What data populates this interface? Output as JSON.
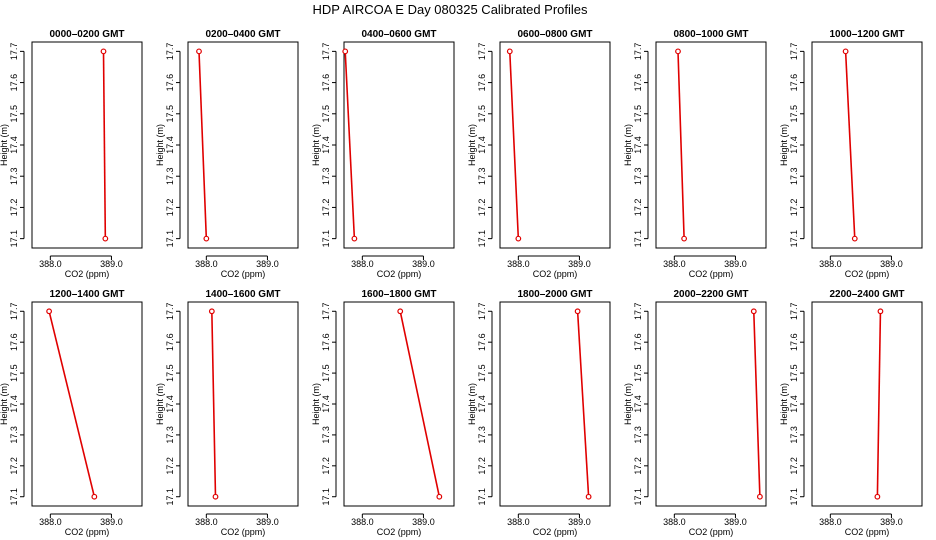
{
  "title": "HDP  AIRCOA E  Day 080325  Calibrated Profiles",
  "colors": {
    "line": "#e00000",
    "axis": "#000000",
    "background": "#ffffff"
  },
  "chart_data": [
    {
      "type": "line",
      "title": "0000–0200 GMT",
      "xlabel": "CO2 (ppm)",
      "ylabel": "Height (m)",
      "xlim": [
        387.7,
        389.5
      ],
      "ylim": [
        17.07,
        17.73
      ],
      "xticks": [
        "388.0",
        "389.0"
      ],
      "yticks": [
        "17.1",
        "17.2",
        "17.3",
        "17.4",
        "17.5",
        "17.6",
        "17.7"
      ],
      "points": [
        {
          "x": 388.9,
          "y": 17.1
        },
        {
          "x": 388.87,
          "y": 17.7
        }
      ]
    },
    {
      "type": "line",
      "title": "0200–0400 GMT",
      "xlabel": "CO2 (ppm)",
      "ylabel": "Height (m)",
      "xlim": [
        387.7,
        389.5
      ],
      "ylim": [
        17.07,
        17.73
      ],
      "xticks": [
        "388.0",
        "389.0"
      ],
      "yticks": [
        "17.1",
        "17.2",
        "17.3",
        "17.4",
        "17.5",
        "17.6",
        "17.7"
      ],
      "points": [
        {
          "x": 388.0,
          "y": 17.1
        },
        {
          "x": 387.88,
          "y": 17.7
        }
      ]
    },
    {
      "type": "line",
      "title": "0400–0600 GMT",
      "xlabel": "CO2 (ppm)",
      "ylabel": "Height (m)",
      "xlim": [
        387.7,
        389.5
      ],
      "ylim": [
        17.07,
        17.73
      ],
      "xticks": [
        "388.0",
        "389.0"
      ],
      "yticks": [
        "17.1",
        "17.2",
        "17.3",
        "17.4",
        "17.5",
        "17.6",
        "17.7"
      ],
      "points": [
        {
          "x": 387.87,
          "y": 17.1
        },
        {
          "x": 387.72,
          "y": 17.7
        }
      ]
    },
    {
      "type": "line",
      "title": "0600–0800 GMT",
      "xlabel": "CO2 (ppm)",
      "ylabel": "Height (m)",
      "xlim": [
        387.7,
        389.5
      ],
      "ylim": [
        17.07,
        17.73
      ],
      "xticks": [
        "388.0",
        "389.0"
      ],
      "yticks": [
        "17.1",
        "17.2",
        "17.3",
        "17.4",
        "17.5",
        "17.6",
        "17.7"
      ],
      "points": [
        {
          "x": 388.0,
          "y": 17.1
        },
        {
          "x": 387.86,
          "y": 17.7
        }
      ]
    },
    {
      "type": "line",
      "title": "0800–1000 GMT",
      "xlabel": "CO2 (ppm)",
      "ylabel": "Height (m)",
      "xlim": [
        387.7,
        389.5
      ],
      "ylim": [
        17.07,
        17.73
      ],
      "xticks": [
        "388.0",
        "389.0"
      ],
      "yticks": [
        "17.1",
        "17.2",
        "17.3",
        "17.4",
        "17.5",
        "17.6",
        "17.7"
      ],
      "points": [
        {
          "x": 388.16,
          "y": 17.1
        },
        {
          "x": 388.06,
          "y": 17.7
        }
      ]
    },
    {
      "type": "line",
      "title": "1000–1200 GMT",
      "xlabel": "CO2 (ppm)",
      "ylabel": "Height (m)",
      "xlim": [
        387.7,
        389.5
      ],
      "ylim": [
        17.07,
        17.73
      ],
      "xticks": [
        "388.0",
        "389.0"
      ],
      "yticks": [
        "17.1",
        "17.2",
        "17.3",
        "17.4",
        "17.5",
        "17.6",
        "17.7"
      ],
      "points": [
        {
          "x": 388.4,
          "y": 17.1
        },
        {
          "x": 388.25,
          "y": 17.7
        }
      ]
    },
    {
      "type": "line",
      "title": "1200–1400 GMT",
      "xlabel": "CO2 (ppm)",
      "ylabel": "Height (m)",
      "xlim": [
        387.7,
        389.5
      ],
      "ylim": [
        17.07,
        17.73
      ],
      "xticks": [
        "388.0",
        "389.0"
      ],
      "yticks": [
        "17.1",
        "17.2",
        "17.3",
        "17.4",
        "17.5",
        "17.6",
        "17.7"
      ],
      "points": [
        {
          "x": 388.72,
          "y": 17.1
        },
        {
          "x": 387.98,
          "y": 17.7
        }
      ]
    },
    {
      "type": "line",
      "title": "1400–1600 GMT",
      "xlabel": "CO2 (ppm)",
      "ylabel": "Height (m)",
      "xlim": [
        387.7,
        389.5
      ],
      "ylim": [
        17.07,
        17.73
      ],
      "xticks": [
        "388.0",
        "389.0"
      ],
      "yticks": [
        "17.1",
        "17.2",
        "17.3",
        "17.4",
        "17.5",
        "17.6",
        "17.7"
      ],
      "points": [
        {
          "x": 388.15,
          "y": 17.1
        },
        {
          "x": 388.09,
          "y": 17.7
        }
      ]
    },
    {
      "type": "line",
      "title": "1600–1800 GMT",
      "xlabel": "CO2 (ppm)",
      "ylabel": "Height (m)",
      "xlim": [
        387.7,
        389.5
      ],
      "ylim": [
        17.07,
        17.73
      ],
      "xticks": [
        "388.0",
        "389.0"
      ],
      "yticks": [
        "17.1",
        "17.2",
        "17.3",
        "17.4",
        "17.5",
        "17.6",
        "17.7"
      ],
      "points": [
        {
          "x": 389.26,
          "y": 17.1
        },
        {
          "x": 388.62,
          "y": 17.7
        }
      ]
    },
    {
      "type": "line",
      "title": "1800–2000 GMT",
      "xlabel": "CO2 (ppm)",
      "ylabel": "Height (m)",
      "xlim": [
        387.7,
        389.5
      ],
      "ylim": [
        17.07,
        17.73
      ],
      "xticks": [
        "388.0",
        "389.0"
      ],
      "yticks": [
        "17.1",
        "17.2",
        "17.3",
        "17.4",
        "17.5",
        "17.6",
        "17.7"
      ],
      "points": [
        {
          "x": 389.15,
          "y": 17.1
        },
        {
          "x": 388.97,
          "y": 17.7
        }
      ]
    },
    {
      "type": "line",
      "title": "2000–2200 GMT",
      "xlabel": "CO2 (ppm)",
      "ylabel": "Height (m)",
      "xlim": [
        387.7,
        389.5
      ],
      "ylim": [
        17.07,
        17.73
      ],
      "xticks": [
        "388.0",
        "389.0"
      ],
      "yticks": [
        "17.1",
        "17.2",
        "17.3",
        "17.4",
        "17.5",
        "17.6",
        "17.7"
      ],
      "points": [
        {
          "x": 389.4,
          "y": 17.1
        },
        {
          "x": 389.3,
          "y": 17.7
        }
      ]
    },
    {
      "type": "line",
      "title": "2200–2400 GMT",
      "xlabel": "CO2 (ppm)",
      "ylabel": "Height (m)",
      "xlim": [
        387.7,
        389.5
      ],
      "ylim": [
        17.07,
        17.73
      ],
      "xticks": [
        "388.0",
        "389.0"
      ],
      "yticks": [
        "17.1",
        "17.2",
        "17.3",
        "17.4",
        "17.5",
        "17.6",
        "17.7"
      ],
      "points": [
        {
          "x": 388.77,
          "y": 17.1
        },
        {
          "x": 388.82,
          "y": 17.7
        }
      ]
    }
  ]
}
